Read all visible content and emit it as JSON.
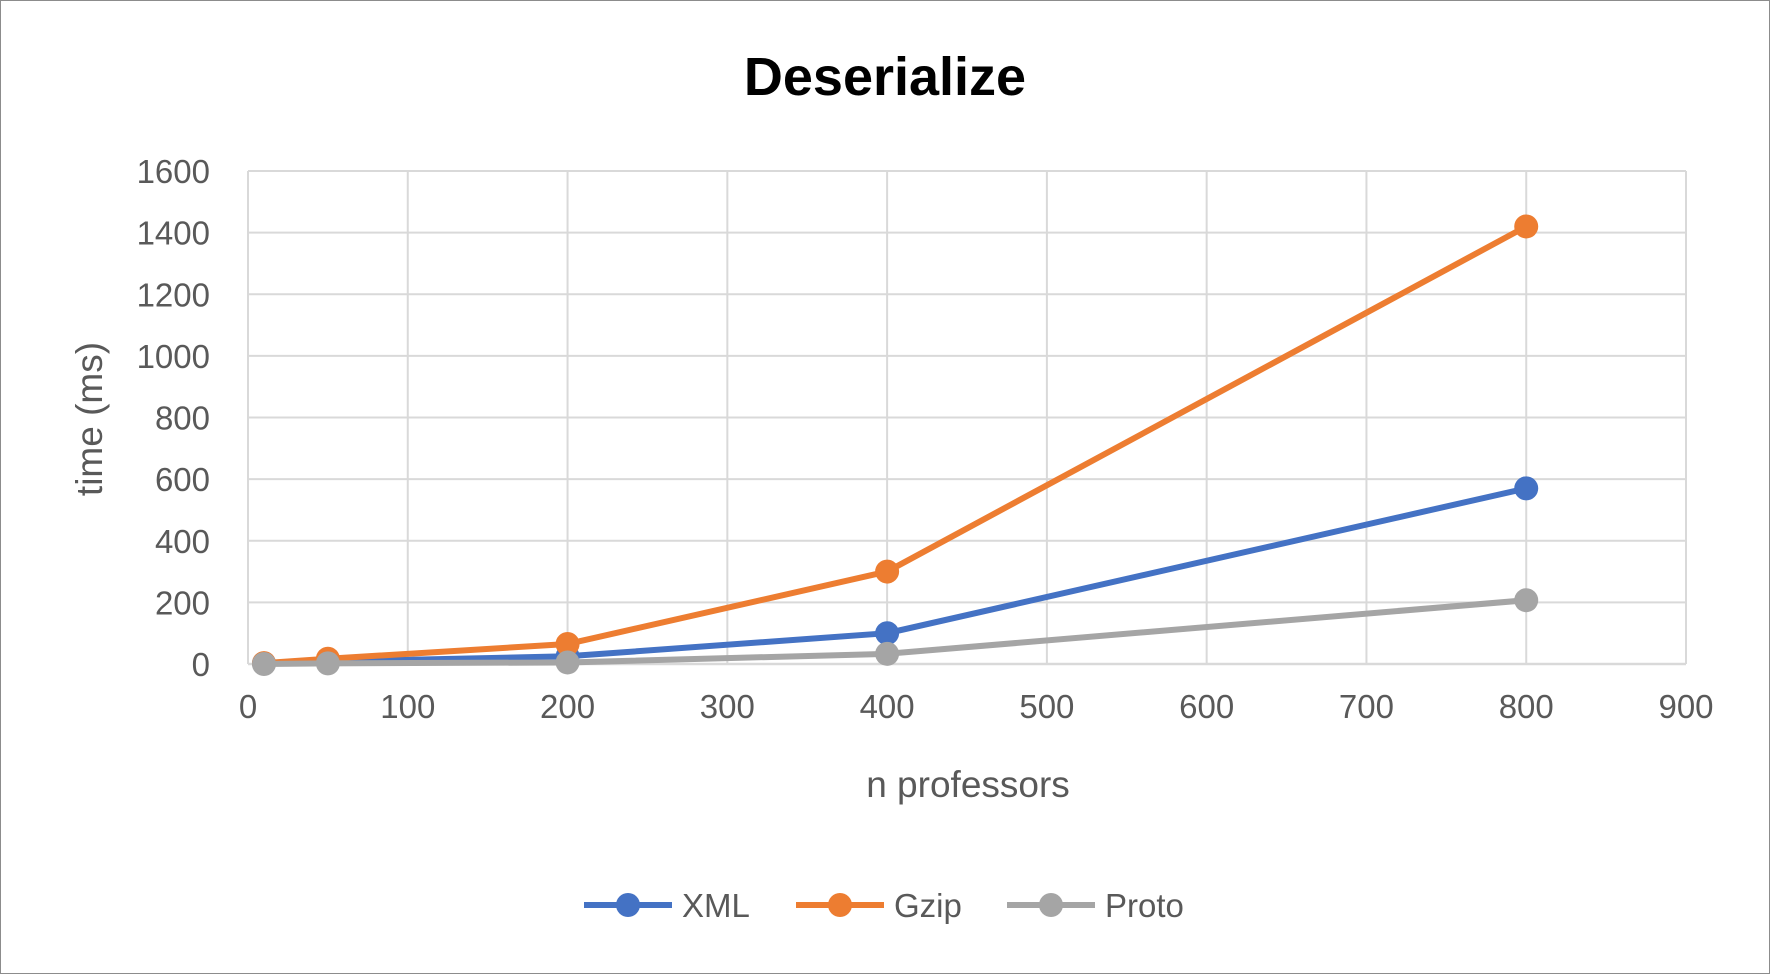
{
  "chart_data": {
    "type": "line",
    "title": "Deserialize",
    "xlabel": "n professors",
    "ylabel": "time (ms)",
    "xlim": [
      0,
      900
    ],
    "ylim": [
      0,
      1600
    ],
    "x_ticks": [
      0,
      100,
      200,
      300,
      400,
      500,
      600,
      700,
      800,
      900
    ],
    "y_ticks": [
      0,
      200,
      400,
      600,
      800,
      1000,
      1200,
      1400,
      1600
    ],
    "grid": true,
    "legend_position": "bottom",
    "series": [
      {
        "name": "XML",
        "color": "#4472C4",
        "x": [
          10,
          50,
          200,
          400,
          800
        ],
        "y": [
          2,
          8,
          25,
          100,
          570
        ]
      },
      {
        "name": "Gzip",
        "color": "#ED7D31",
        "x": [
          10,
          50,
          200,
          400,
          800
        ],
        "y": [
          3,
          17,
          65,
          300,
          1420
        ]
      },
      {
        "name": "Proto",
        "color": "#A5A5A5",
        "x": [
          10,
          50,
          200,
          400,
          800
        ],
        "y": [
          0,
          2,
          5,
          33,
          207
        ]
      }
    ]
  }
}
